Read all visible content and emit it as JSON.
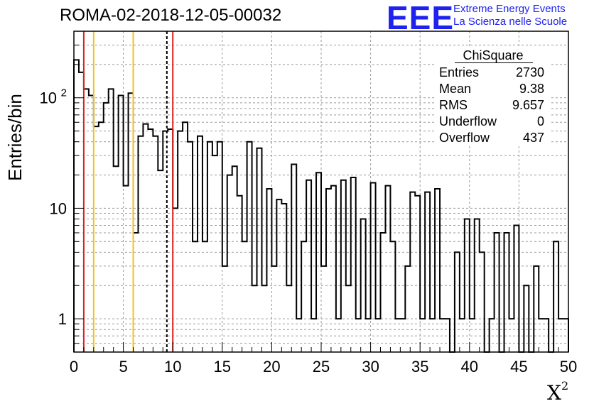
{
  "title": "ROMA-02-2018-12-05-00032",
  "logo": {
    "text": "EEE",
    "line1": "Extreme Energy Events",
    "line2": "La Scienza nelle Scuole",
    "color": "#1f22ee"
  },
  "stats": {
    "name": "ChiSquare",
    "rows": [
      {
        "label": "Entries",
        "value": "2730"
      },
      {
        "label": "Mean",
        "value": "9.38"
      },
      {
        "label": "RMS",
        "value": "9.657"
      },
      {
        "label": "Underflow",
        "value": "0"
      },
      {
        "label": "Overflow",
        "value": "437"
      }
    ]
  },
  "chart_data": {
    "type": "histogram",
    "title": "ROMA-02-2018-12-05-00032",
    "xlabel": "X",
    "xlabel_sup": "2",
    "ylabel": "Entries/bin",
    "xlim": [
      0,
      50
    ],
    "ylim": [
      0.5,
      400
    ],
    "yscale": "log",
    "grid": true,
    "bin_width": 0.5,
    "x_ticks": [
      "0",
      "5",
      "10",
      "15",
      "20",
      "25",
      "30",
      "35",
      "40",
      "45",
      "50"
    ],
    "y_ticks": [
      {
        "value": 1,
        "label": "1"
      },
      {
        "value": 10,
        "label": "10"
      },
      {
        "value": 100,
        "label": "10",
        "exp": "2"
      }
    ],
    "counts": [
      220,
      170,
      120,
      105,
      55,
      60,
      90,
      120,
      24,
      105,
      16,
      110,
      6,
      45,
      58,
      52,
      45,
      22,
      50,
      52,
      10,
      50,
      60,
      40,
      5,
      45,
      5,
      40,
      30,
      40,
      3,
      20,
      24,
      13,
      5,
      40,
      2,
      35,
      2,
      15,
      3,
      12,
      11,
      2,
      25,
      1,
      5,
      18,
      1,
      21,
      3,
      15,
      16,
      1,
      18,
      2,
      19,
      1,
      8,
      1,
      17,
      1,
      6,
      16,
      5,
      1,
      1,
      3,
      14,
      13,
      1,
      14,
      1,
      15,
      1,
      1,
      0,
      4,
      1,
      8,
      1,
      8,
      4,
      0,
      1,
      6,
      0,
      6,
      1,
      7,
      0.5,
      2,
      0,
      3,
      1,
      1,
      0,
      5,
      1,
      1
    ],
    "vertical_lines": [
      {
        "x": 1,
        "color": "#e02020",
        "style": "solid"
      },
      {
        "x": 2,
        "color": "#f2c21c",
        "style": "solid"
      },
      {
        "x": 6,
        "color": "#f2c21c",
        "style": "solid"
      },
      {
        "x": 9.4,
        "color": "#000000",
        "style": "dashed"
      },
      {
        "x": 10,
        "color": "#e02020",
        "style": "solid"
      }
    ]
  }
}
